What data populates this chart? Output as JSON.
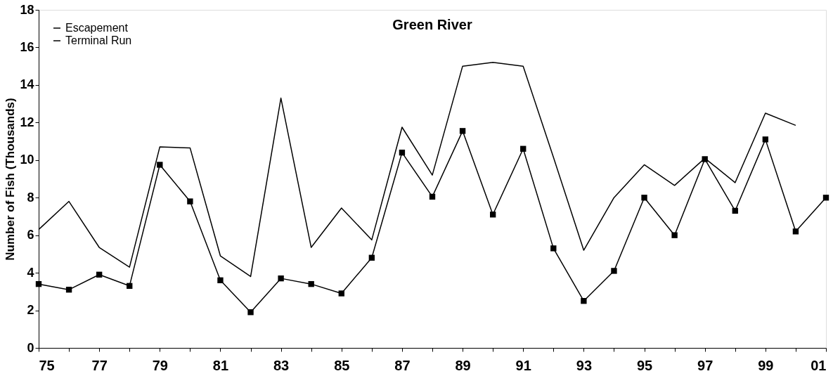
{
  "chart_data": {
    "type": "line",
    "title": "Green River",
    "ylabel": "Number of Fish (Thousands)",
    "categories": [
      "75",
      null,
      "77",
      null,
      "79",
      null,
      "81",
      null,
      "83",
      null,
      "85",
      null,
      "87",
      null,
      "89",
      null,
      "91",
      null,
      "93",
      null,
      "95",
      null,
      "97",
      null,
      "99",
      null,
      "01"
    ],
    "series": [
      {
        "name": "Escapement",
        "color": "#000000",
        "marker": "square",
        "values": [
          3.4,
          3.1,
          3.9,
          3.3,
          9.75,
          7.8,
          3.6,
          1.9,
          3.7,
          3.4,
          2.9,
          4.8,
          10.4,
          8.05,
          11.55,
          7.1,
          10.6,
          5.3,
          2.5,
          4.1,
          8.0,
          6.0,
          10.05,
          7.3,
          11.1,
          6.2,
          8.0
        ]
      },
      {
        "name": "Terminal Run",
        "color": "#000000",
        "marker": "none",
        "values": [
          6.3,
          7.8,
          5.35,
          4.3,
          10.7,
          10.65,
          4.9,
          3.8,
          13.3,
          5.35,
          7.45,
          5.75,
          11.75,
          9.2,
          15.0,
          15.2,
          15.0,
          10.15,
          5.2,
          8.0,
          9.75,
          8.65,
          10.1,
          8.8,
          12.5,
          11.85,
          null
        ]
      }
    ],
    "ylim": [
      0,
      18
    ],
    "yticks": [
      0,
      2,
      4,
      6,
      8,
      10,
      12,
      14,
      16,
      18
    ],
    "grid": false,
    "legend": "top left",
    "line_style": "solid"
  }
}
